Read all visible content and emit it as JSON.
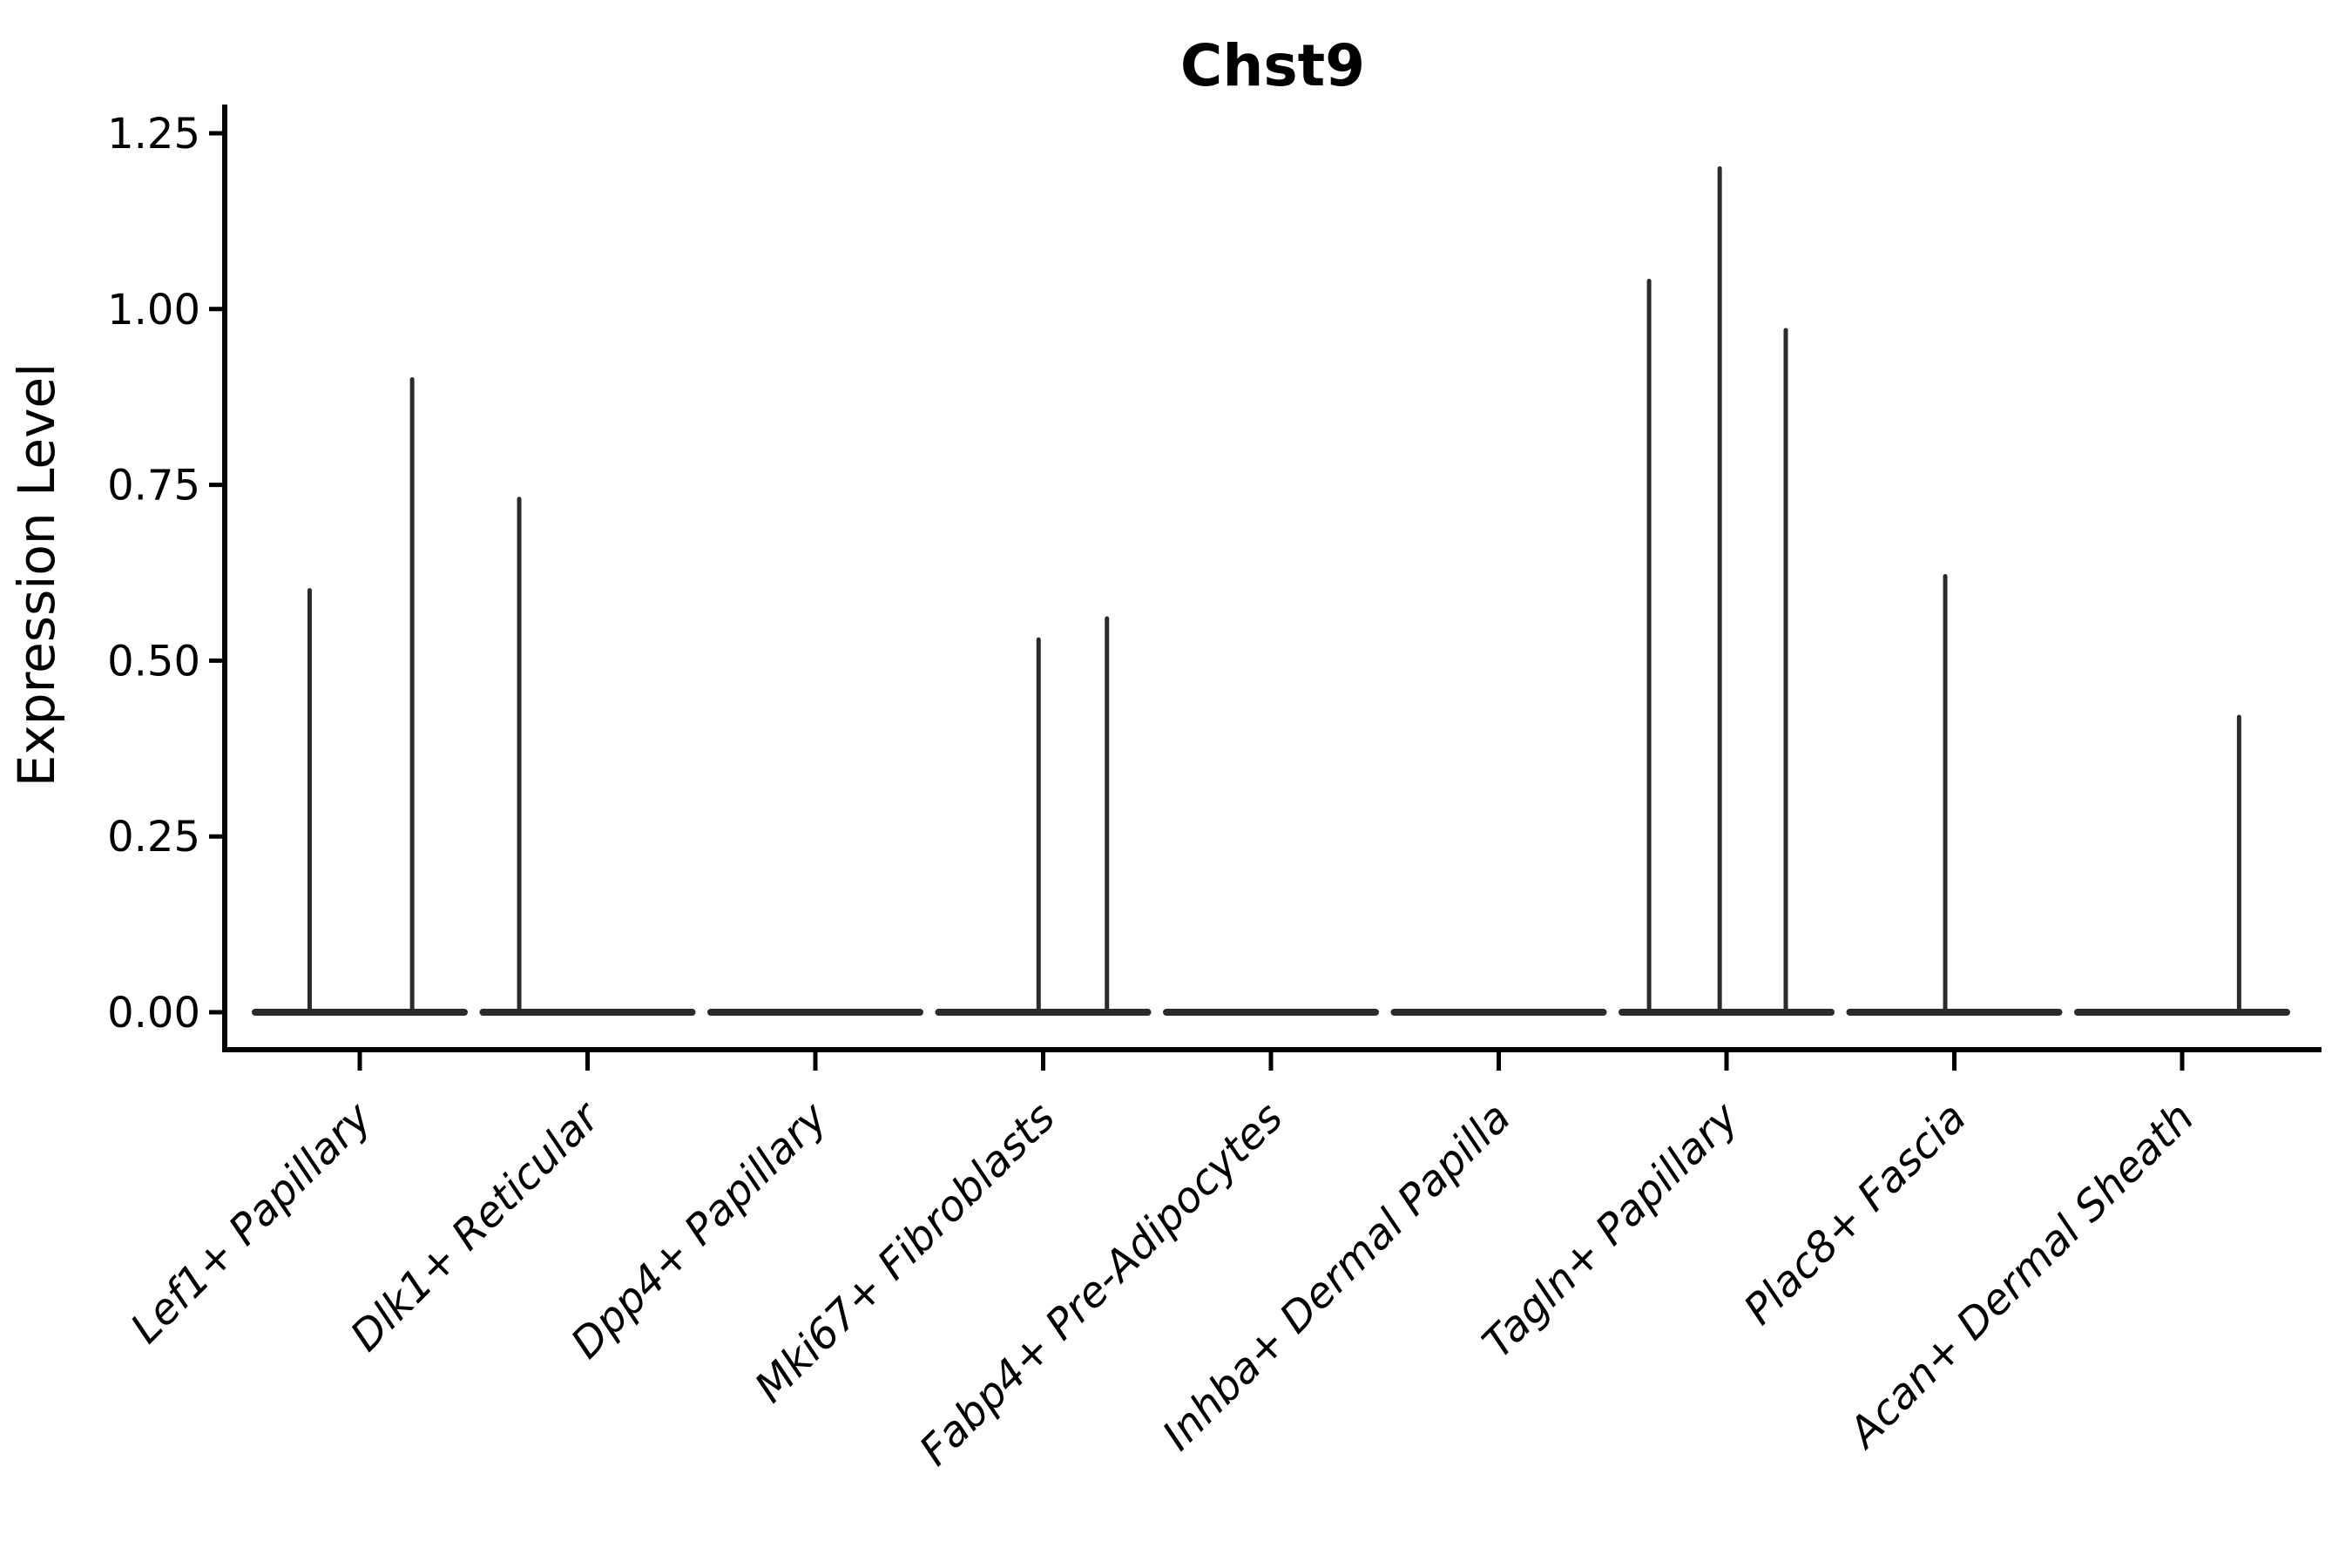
{
  "figure": {
    "title": "Chst9",
    "background": "#ffffff"
  },
  "chart_data": {
    "type": "violin",
    "title": "Chst9",
    "xlabel": "",
    "ylabel": "Expression Level",
    "ylim": [
      0,
      1.25
    ],
    "ytick_values": [
      0,
      0.25,
      0.5,
      0.75,
      1.0,
      1.25
    ],
    "ytick_labels": [
      "0.00",
      "0.25",
      "0.50",
      "0.75",
      "1.00",
      "1.25"
    ],
    "grid": false,
    "legend_position": "none",
    "categories": [
      "Lef1+ Papillary",
      "Dlk1+ Reticular",
      "Dpp4+ Papillary",
      "Mki67+ Fibroblasts",
      "Fabp4+ Pre-Adipocytes",
      "Inhba+ Dermal Papilla",
      "Tagln+ Papillary",
      "Plac8+ Fascia",
      "Acan+ Dermal Sheath"
    ],
    "violins": [
      {
        "category": "Lef1+ Papillary",
        "zero_body": true,
        "spikes": [
          {
            "pos": -0.22,
            "peak": 0.6
          },
          {
            "pos": 0.23,
            "peak": 0.9
          }
        ]
      },
      {
        "category": "Dlk1+ Reticular",
        "zero_body": true,
        "spikes": [
          {
            "pos": -0.3,
            "peak": 0.73
          }
        ]
      },
      {
        "category": "Dpp4+ Papillary",
        "zero_body": true,
        "spikes": []
      },
      {
        "category": "Mki67+ Fibroblasts",
        "zero_body": true,
        "spikes": [
          {
            "pos": -0.02,
            "peak": 0.53
          },
          {
            "pos": 0.28,
            "peak": 0.56
          }
        ]
      },
      {
        "category": "Fabp4+ Pre-Adipocytes",
        "zero_body": true,
        "spikes": []
      },
      {
        "category": "Inhba+ Dermal Papilla",
        "zero_body": true,
        "spikes": []
      },
      {
        "category": "Tagln+ Papillary",
        "zero_body": true,
        "spikes": [
          {
            "pos": -0.34,
            "peak": 1.04
          },
          {
            "pos": -0.03,
            "peak": 1.2
          },
          {
            "pos": 0.26,
            "peak": 0.97
          }
        ]
      },
      {
        "category": "Plac8+ Fascia",
        "zero_body": true,
        "spikes": [
          {
            "pos": -0.04,
            "peak": 0.62
          }
        ]
      },
      {
        "category": "Acan+ Dermal Sheath",
        "zero_body": true,
        "spikes": [
          {
            "pos": 0.25,
            "peak": 0.42
          }
        ]
      }
    ],
    "colors": {
      "violin_line": "#2b2b2b",
      "axis": "#000000",
      "text": "#000000",
      "background": "#ffffff"
    }
  }
}
